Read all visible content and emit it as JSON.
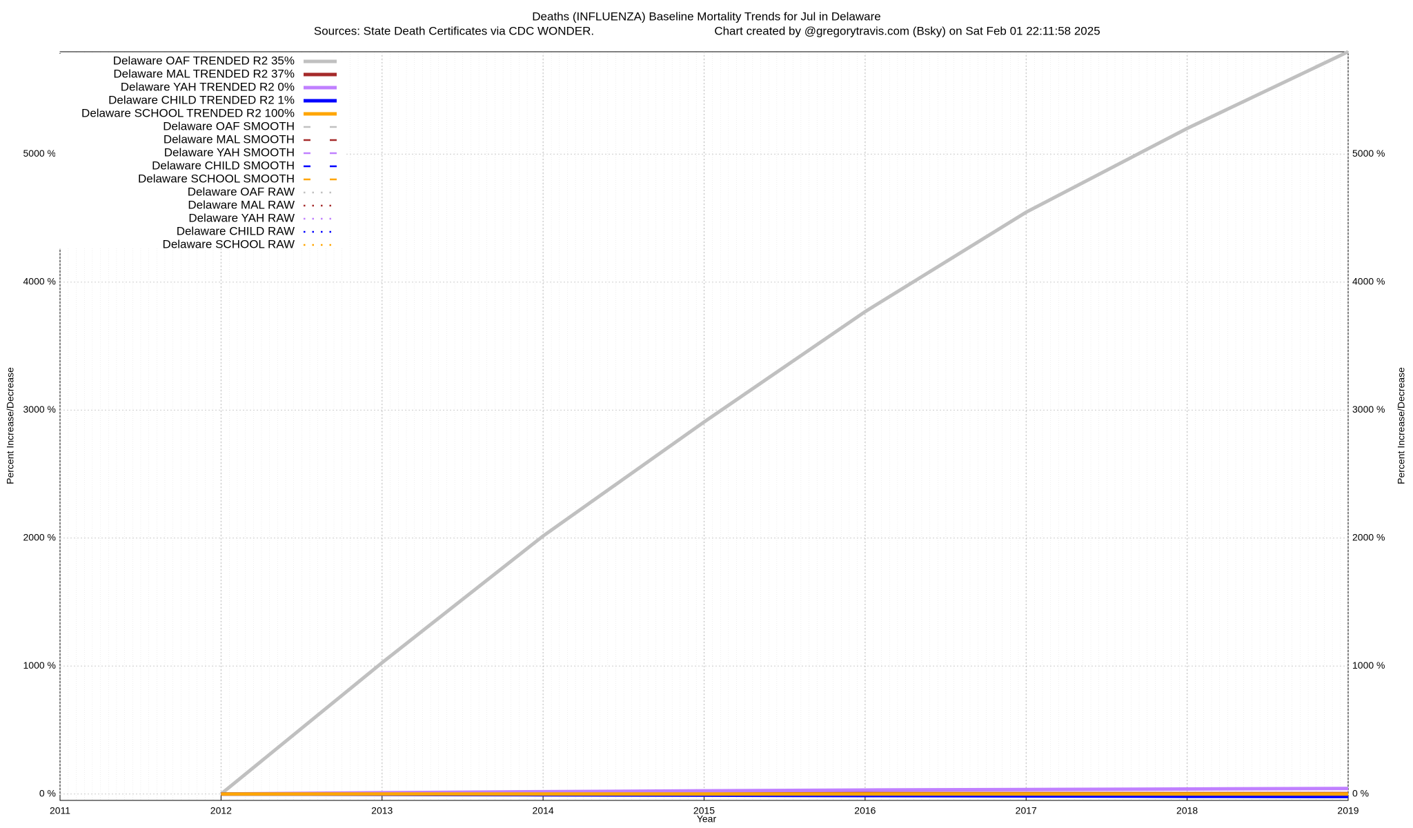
{
  "chart_data": {
    "type": "line",
    "title": "Deaths (INFLUENZA)  Baseline Mortality Trends for Jul in Delaware",
    "subtitle": "Sources: State Death Certificates via CDC WONDER.",
    "credit": "Chart created by @gregorytravis.com (Bsky) on Sat Feb 01 22:11:58 2025",
    "x_label": "Year",
    "y_label": "Percent Increase/Decrease",
    "y2_label": "Percent Increase/Decrease",
    "x": [
      2012,
      2013,
      2014,
      2015,
      2016,
      2017,
      2018,
      2019
    ],
    "xlim": [
      2011,
      2019
    ],
    "xticks": [
      2011,
      2012,
      2013,
      2014,
      2015,
      2016,
      2017,
      2018,
      2019
    ],
    "ylim": [
      -50,
      5800
    ],
    "yticks": [
      {
        "value": 0,
        "label": "0 %"
      },
      {
        "value": 1000,
        "label": "1000 %"
      },
      {
        "value": 2000,
        "label": "2000 %"
      },
      {
        "value": 3000,
        "label": "3000 %"
      },
      {
        "value": 4000,
        "label": "4000 %"
      },
      {
        "value": 5000,
        "label": "5000 %"
      }
    ],
    "grid": true,
    "legend": "upper left",
    "series": [
      {
        "name": "Delaware OAF TRENDED R2  35%",
        "color": "#c0c0c0",
        "style": "solid",
        "values": [
          0,
          1026,
          2016,
          2907,
          3769,
          4546,
          5201,
          5800
        ]
      },
      {
        "name": "Delaware MAL TRENDED R2  37%",
        "color": "#a52a2a",
        "style": "solid",
        "values": [
          0,
          1,
          2,
          2,
          3,
          3,
          3,
          3
        ]
      },
      {
        "name": "Delaware YAH TRENDED R2   0%",
        "color": "#c080ff",
        "style": "solid",
        "values": [
          0,
          10,
          18,
          25,
          31,
          35,
          39,
          43
        ]
      },
      {
        "name": "Delaware CHILD TRENDED R2   1%",
        "color": "#0000ff",
        "style": "solid",
        "values": [
          0,
          -3,
          -6,
          -9,
          -12,
          -15,
          -18,
          -20
        ]
      },
      {
        "name": "Delaware SCHOOL TRENDED R2 100%",
        "color": "#ffa500",
        "style": "solid",
        "values": [
          0,
          0,
          0,
          0,
          0,
          0,
          0,
          0
        ]
      },
      {
        "name": "Delaware OAF SMOOTH",
        "color": "#c0c0c0",
        "style": "dashed"
      },
      {
        "name": "Delaware MAL SMOOTH",
        "color": "#a52a2a",
        "style": "dashed"
      },
      {
        "name": "Delaware YAH SMOOTH",
        "color": "#c080ff",
        "style": "dashed"
      },
      {
        "name": "Delaware CHILD SMOOTH",
        "color": "#0000ff",
        "style": "dashed"
      },
      {
        "name": "Delaware SCHOOL SMOOTH",
        "color": "#ffa500",
        "style": "dashed"
      },
      {
        "name": "Delaware OAF RAW",
        "color": "#c0c0c0",
        "style": "dotted"
      },
      {
        "name": "Delaware MAL RAW",
        "color": "#a52a2a",
        "style": "dotted"
      },
      {
        "name": "Delaware YAH RAW",
        "color": "#c080ff",
        "style": "dotted"
      },
      {
        "name": "Delaware CHILD RAW",
        "color": "#0000ff",
        "style": "dotted"
      },
      {
        "name": "Delaware SCHOOL RAW",
        "color": "#ffa500",
        "style": "dotted"
      }
    ]
  }
}
